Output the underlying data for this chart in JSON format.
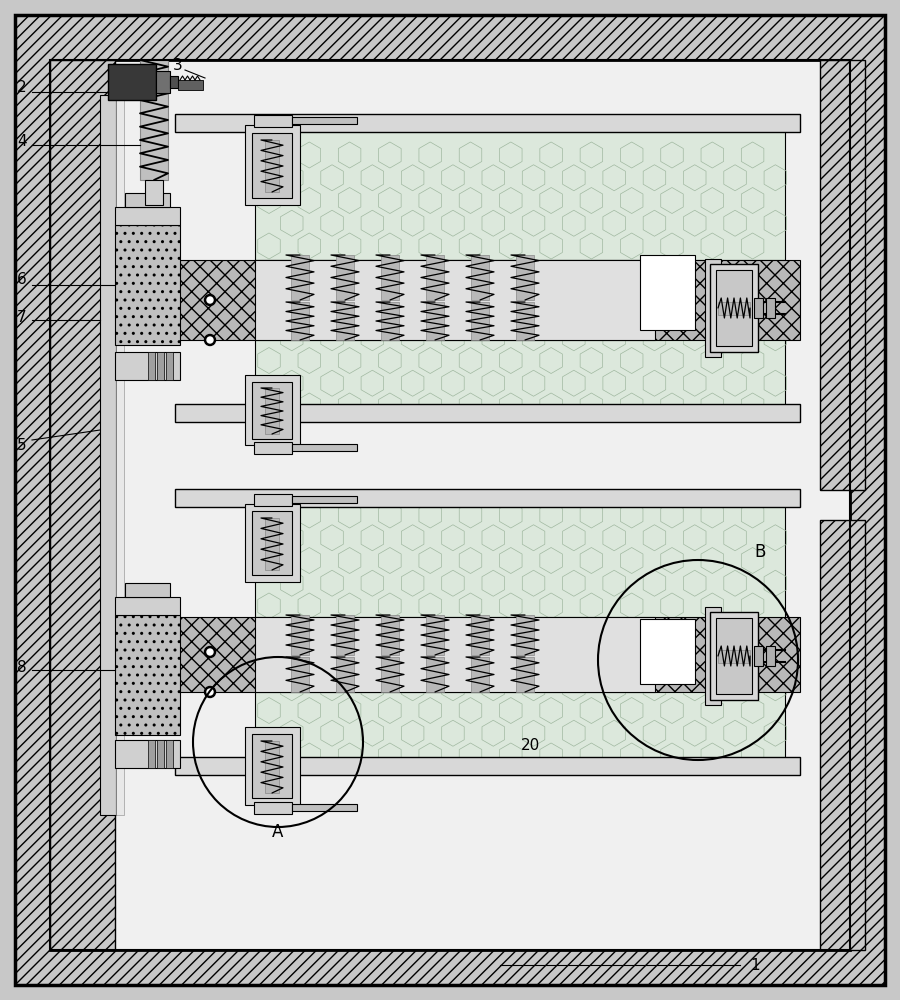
{
  "bg_color": "#c8c8c8",
  "inner_bg": "#f0f0f0",
  "hatch_fc": "#c8c8c8",
  "line_color": "#000000",
  "light_gray": "#e8e8e8",
  "mid_gray": "#c0c0c0",
  "dark_gray": "#606060",
  "honeycomb_fc": "#dce8dc",
  "xhatch_fc": "#b8b8b8",
  "white": "#ffffff",
  "spring_bg": "#c0c0c0"
}
